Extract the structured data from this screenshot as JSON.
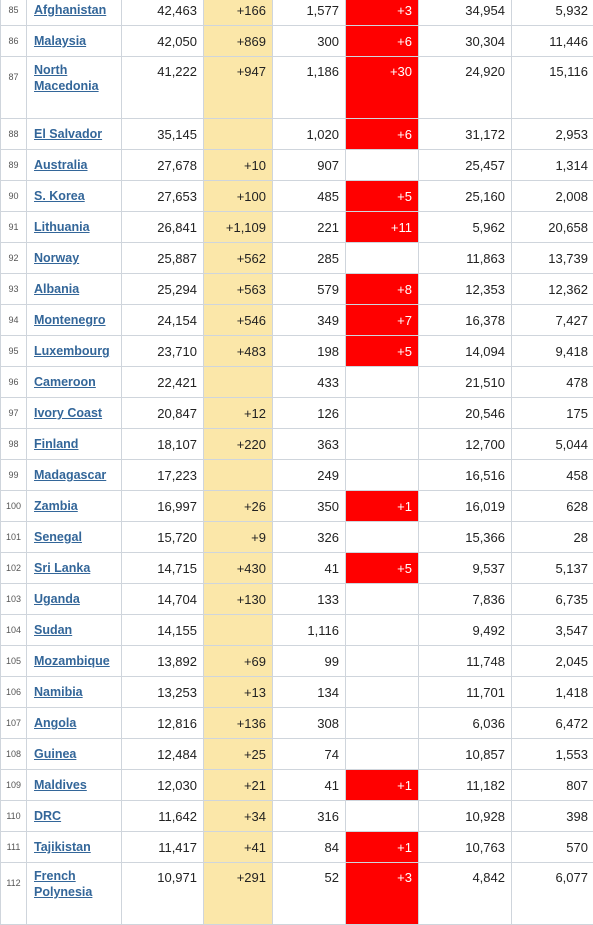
{
  "table": {
    "rows": [
      {
        "rank": "85",
        "country": "Afghanistan",
        "total_cases": "42,463",
        "new_cases": "+166",
        "total_deaths": "1,577",
        "new_deaths": "+3",
        "total_recovered": "34,954",
        "active_cases": "5,932"
      },
      {
        "rank": "86",
        "country": "Malaysia",
        "total_cases": "42,050",
        "new_cases": "+869",
        "total_deaths": "300",
        "new_deaths": "+6",
        "total_recovered": "30,304",
        "active_cases": "11,446"
      },
      {
        "rank": "87",
        "country": "North Macedonia",
        "total_cases": "41,222",
        "new_cases": "+947",
        "total_deaths": "1,186",
        "new_deaths": "+30",
        "total_recovered": "24,920",
        "active_cases": "15,116"
      },
      {
        "rank": "88",
        "country": "El Salvador",
        "total_cases": "35,145",
        "new_cases": "",
        "total_deaths": "1,020",
        "new_deaths": "+6",
        "total_recovered": "31,172",
        "active_cases": "2,953"
      },
      {
        "rank": "89",
        "country": "Australia",
        "total_cases": "27,678",
        "new_cases": "+10",
        "total_deaths": "907",
        "new_deaths": "",
        "total_recovered": "25,457",
        "active_cases": "1,314"
      },
      {
        "rank": "90",
        "country": "S. Korea",
        "total_cases": "27,653",
        "new_cases": "+100",
        "total_deaths": "485",
        "new_deaths": "+5",
        "total_recovered": "25,160",
        "active_cases": "2,008"
      },
      {
        "rank": "91",
        "country": "Lithuania",
        "total_cases": "26,841",
        "new_cases": "+1,109",
        "total_deaths": "221",
        "new_deaths": "+11",
        "total_recovered": "5,962",
        "active_cases": "20,658"
      },
      {
        "rank": "92",
        "country": "Norway",
        "total_cases": "25,887",
        "new_cases": "+562",
        "total_deaths": "285",
        "new_deaths": "",
        "total_recovered": "11,863",
        "active_cases": "13,739"
      },
      {
        "rank": "93",
        "country": "Albania",
        "total_cases": "25,294",
        "new_cases": "+563",
        "total_deaths": "579",
        "new_deaths": "+8",
        "total_recovered": "12,353",
        "active_cases": "12,362"
      },
      {
        "rank": "94",
        "country": "Montenegro",
        "total_cases": "24,154",
        "new_cases": "+546",
        "total_deaths": "349",
        "new_deaths": "+7",
        "total_recovered": "16,378",
        "active_cases": "7,427"
      },
      {
        "rank": "95",
        "country": "Luxembourg",
        "total_cases": "23,710",
        "new_cases": "+483",
        "total_deaths": "198",
        "new_deaths": "+5",
        "total_recovered": "14,094",
        "active_cases": "9,418"
      },
      {
        "rank": "96",
        "country": "Cameroon",
        "total_cases": "22,421",
        "new_cases": "",
        "total_deaths": "433",
        "new_deaths": "",
        "total_recovered": "21,510",
        "active_cases": "478"
      },
      {
        "rank": "97",
        "country": "Ivory Coast",
        "total_cases": "20,847",
        "new_cases": "+12",
        "total_deaths": "126",
        "new_deaths": "",
        "total_recovered": "20,546",
        "active_cases": "175"
      },
      {
        "rank": "98",
        "country": "Finland",
        "total_cases": "18,107",
        "new_cases": "+220",
        "total_deaths": "363",
        "new_deaths": "",
        "total_recovered": "12,700",
        "active_cases": "5,044"
      },
      {
        "rank": "99",
        "country": "Madagascar",
        "total_cases": "17,223",
        "new_cases": "",
        "total_deaths": "249",
        "new_deaths": "",
        "total_recovered": "16,516",
        "active_cases": "458"
      },
      {
        "rank": "100",
        "country": "Zambia",
        "total_cases": "16,997",
        "new_cases": "+26",
        "total_deaths": "350",
        "new_deaths": "+1",
        "total_recovered": "16,019",
        "active_cases": "628"
      },
      {
        "rank": "101",
        "country": "Senegal",
        "total_cases": "15,720",
        "new_cases": "+9",
        "total_deaths": "326",
        "new_deaths": "",
        "total_recovered": "15,366",
        "active_cases": "28"
      },
      {
        "rank": "102",
        "country": "Sri Lanka",
        "total_cases": "14,715",
        "new_cases": "+430",
        "total_deaths": "41",
        "new_deaths": "+5",
        "total_recovered": "9,537",
        "active_cases": "5,137"
      },
      {
        "rank": "103",
        "country": "Uganda",
        "total_cases": "14,704",
        "new_cases": "+130",
        "total_deaths": "133",
        "new_deaths": "",
        "total_recovered": "7,836",
        "active_cases": "6,735"
      },
      {
        "rank": "104",
        "country": "Sudan",
        "total_cases": "14,155",
        "new_cases": "",
        "total_deaths": "1,116",
        "new_deaths": "",
        "total_recovered": "9,492",
        "active_cases": "3,547"
      },
      {
        "rank": "105",
        "country": "Mozambique",
        "total_cases": "13,892",
        "new_cases": "+69",
        "total_deaths": "99",
        "new_deaths": "",
        "total_recovered": "11,748",
        "active_cases": "2,045"
      },
      {
        "rank": "106",
        "country": "Namibia",
        "total_cases": "13,253",
        "new_cases": "+13",
        "total_deaths": "134",
        "new_deaths": "",
        "total_recovered": "11,701",
        "active_cases": "1,418"
      },
      {
        "rank": "107",
        "country": "Angola",
        "total_cases": "12,816",
        "new_cases": "+136",
        "total_deaths": "308",
        "new_deaths": "",
        "total_recovered": "6,036",
        "active_cases": "6,472"
      },
      {
        "rank": "108",
        "country": "Guinea",
        "total_cases": "12,484",
        "new_cases": "+25",
        "total_deaths": "74",
        "new_deaths": "",
        "total_recovered": "10,857",
        "active_cases": "1,553"
      },
      {
        "rank": "109",
        "country": "Maldives",
        "total_cases": "12,030",
        "new_cases": "+21",
        "total_deaths": "41",
        "new_deaths": "+1",
        "total_recovered": "11,182",
        "active_cases": "807"
      },
      {
        "rank": "110",
        "country": "DRC",
        "total_cases": "11,642",
        "new_cases": "+34",
        "total_deaths": "316",
        "new_deaths": "",
        "total_recovered": "10,928",
        "active_cases": "398"
      },
      {
        "rank": "111",
        "country": "Tajikistan",
        "total_cases": "11,417",
        "new_cases": "+41",
        "total_deaths": "84",
        "new_deaths": "+1",
        "total_recovered": "10,763",
        "active_cases": "570"
      },
      {
        "rank": "112",
        "country": "French Polynesia",
        "total_cases": "10,971",
        "new_cases": "+291",
        "total_deaths": "52",
        "new_deaths": "+3",
        "total_recovered": "4,842",
        "active_cases": "6,077"
      }
    ]
  }
}
